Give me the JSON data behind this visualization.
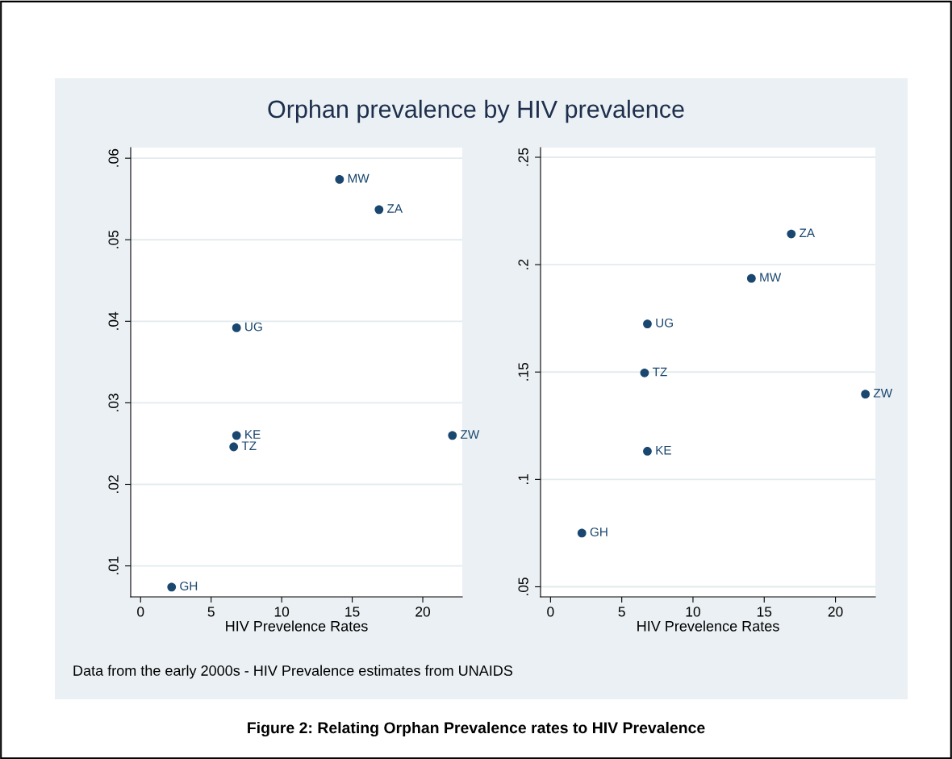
{
  "chart_data": [
    {
      "type": "scatter",
      "title": "Orphan prevalence by HIV prevalence",
      "xlabel": "HIV Prevelence Rates",
      "x": [
        2.2,
        6.6,
        6.8,
        6.8,
        14.1,
        16.9,
        22.1
      ],
      "series": [
        {
          "color": "#1a476f",
          "values": [
            0.0074,
            0.0246,
            0.026,
            0.0392,
            0.0574,
            0.0537,
            0.026
          ]
        }
      ],
      "xlim": [
        -0.7,
        22.8
      ],
      "xticks": [
        0,
        5,
        10,
        15,
        20
      ],
      "ylim": [
        0.0062,
        0.0613
      ],
      "yticks": [
        {
          "value": 0.01,
          "label": ".01"
        },
        {
          "value": 0.02,
          "label": ".02"
        },
        {
          "value": 0.03,
          "label": ".03"
        },
        {
          "value": 0.04,
          "label": ".04"
        },
        {
          "value": 0.05,
          "label": ".05"
        },
        {
          "value": 0.06,
          "label": ".06"
        }
      ],
      "grid": "y",
      "marker": "circle",
      "annotations": [
        {
          "text": "GH",
          "x": 2.2,
          "y": 0.0074
        },
        {
          "text": "TZ",
          "x": 6.6,
          "y": 0.0246
        },
        {
          "text": "KE",
          "x": 6.8,
          "y": 0.026
        },
        {
          "text": "UG",
          "x": 6.8,
          "y": 0.0392
        },
        {
          "text": "MW",
          "x": 14.1,
          "y": 0.0574
        },
        {
          "text": "ZA",
          "x": 16.9,
          "y": 0.0537
        },
        {
          "text": "ZW",
          "x": 22.1,
          "y": 0.026
        },
        "Data from the early 2000s - HIV Prevalence estimates from UNAIDS",
        "Figure 2: Relating Orphan Prevalence rates to HIV Prevalence"
      ]
    },
    {
      "type": "scatter",
      "xlabel": "HIV Prevelence Rates",
      "x": [
        2.2,
        6.6,
        6.8,
        6.8,
        14.1,
        16.9,
        22.1
      ],
      "series": [
        {
          "color": "#1a476f",
          "values": [
            0.075,
            0.1496,
            0.1131,
            0.1724,
            0.1936,
            0.2143,
            0.1397
          ]
        }
      ],
      "xlim": [
        -0.7,
        22.8
      ],
      "xticks": [
        0,
        5,
        10,
        15,
        20
      ],
      "ylim": [
        0.0453,
        0.2545
      ],
      "yticks": [
        {
          "value": 0.05,
          "label": ".05"
        },
        {
          "value": 0.1,
          "label": ".1"
        },
        {
          "value": 0.15,
          "label": ".15"
        },
        {
          "value": 0.2,
          "label": ".2"
        },
        {
          "value": 0.25,
          "label": ".25"
        }
      ],
      "grid": "y",
      "marker": "circle",
      "annotations": [
        {
          "text": "GH",
          "x": 2.2,
          "y": 0.075
        },
        {
          "text": "TZ",
          "x": 6.6,
          "y": 0.1496
        },
        {
          "text": "KE",
          "x": 6.8,
          "y": 0.1131
        },
        {
          "text": "UG",
          "x": 6.8,
          "y": 0.1724
        },
        {
          "text": "MW",
          "x": 14.1,
          "y": 0.1936
        },
        {
          "text": "ZA",
          "x": 16.9,
          "y": 0.2143
        },
        {
          "text": "ZW",
          "x": 22.1,
          "y": 0.1397
        }
      ]
    }
  ]
}
